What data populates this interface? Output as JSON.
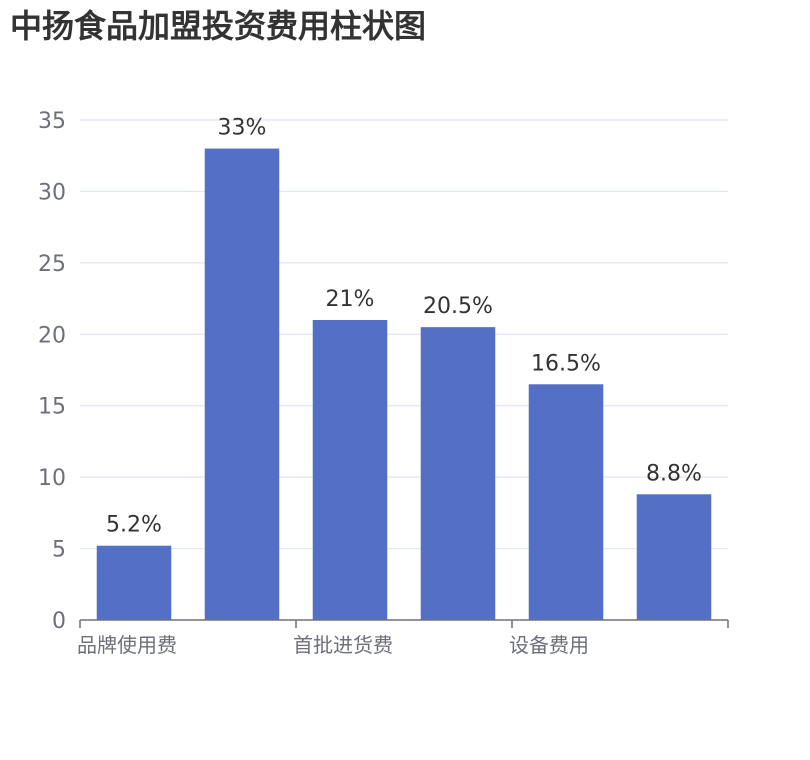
{
  "chart_data": {
    "type": "bar",
    "title": "中扬食品加盟投资费用柱状图",
    "categories": [
      "品牌使用费",
      "",
      "首批进货费",
      "",
      "设备费用",
      ""
    ],
    "values": [
      5.2,
      33,
      21,
      20.5,
      16.5,
      8.8
    ],
    "data_labels": [
      "5.2%",
      "33%",
      "21%",
      "20.5%",
      "16.5%",
      "8.8%"
    ],
    "ylim": [
      0,
      35
    ],
    "yticks": [
      0,
      5,
      10,
      15,
      20,
      25,
      30,
      35
    ],
    "xlabel": "",
    "ylabel": "",
    "grid": true,
    "colors": {
      "bar": "#5470c6",
      "grid": "#e0e6f1",
      "axis": "#6e7079"
    }
  }
}
